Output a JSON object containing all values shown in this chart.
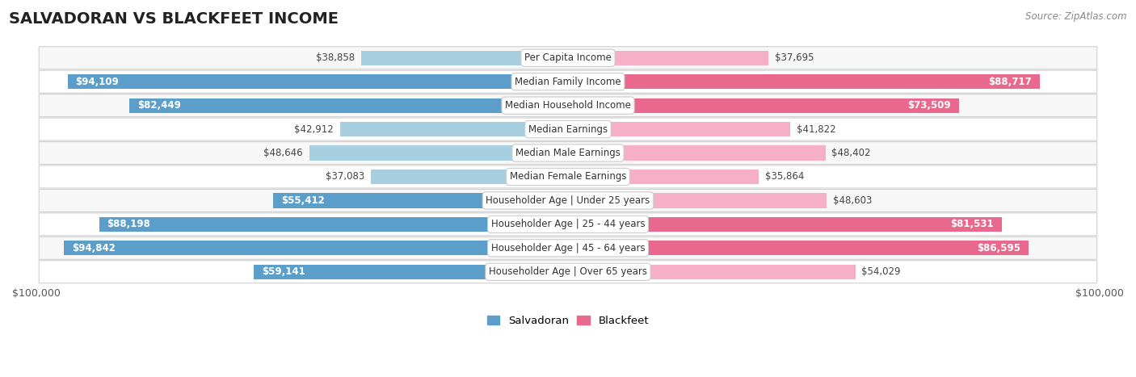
{
  "title": "SALVADORAN VS BLACKFEET INCOME",
  "source": "Source: ZipAtlas.com",
  "categories": [
    "Per Capita Income",
    "Median Family Income",
    "Median Household Income",
    "Median Earnings",
    "Median Male Earnings",
    "Median Female Earnings",
    "Householder Age | Under 25 years",
    "Householder Age | 25 - 44 years",
    "Householder Age | 45 - 64 years",
    "Householder Age | Over 65 years"
  ],
  "salvadoran_values": [
    38858,
    94109,
    82449,
    42912,
    48646,
    37083,
    55412,
    88198,
    94842,
    59141
  ],
  "blackfeet_values": [
    37695,
    88717,
    73509,
    41822,
    48402,
    35864,
    48603,
    81531,
    86595,
    54029
  ],
  "salvadoran_labels": [
    "$38,858",
    "$94,109",
    "$82,449",
    "$42,912",
    "$48,646",
    "$37,083",
    "$55,412",
    "$88,198",
    "$94,842",
    "$59,141"
  ],
  "blackfeet_labels": [
    "$37,695",
    "$88,717",
    "$73,509",
    "$41,822",
    "$48,402",
    "$35,864",
    "$48,603",
    "$81,531",
    "$86,595",
    "$54,029"
  ],
  "salvadoran_color_strong": "#5b9ec9",
  "salvadoran_color_light": "#a8cfe0",
  "blackfeet_color_strong": "#e8698d",
  "blackfeet_color_light": "#f5afc6",
  "max_value": 100000,
  "inside_threshold": 0.55,
  "title_fontsize": 14,
  "label_fontsize": 8.5,
  "category_fontsize": 8.5,
  "axis_label_fontsize": 9,
  "legend_fontsize": 9.5
}
